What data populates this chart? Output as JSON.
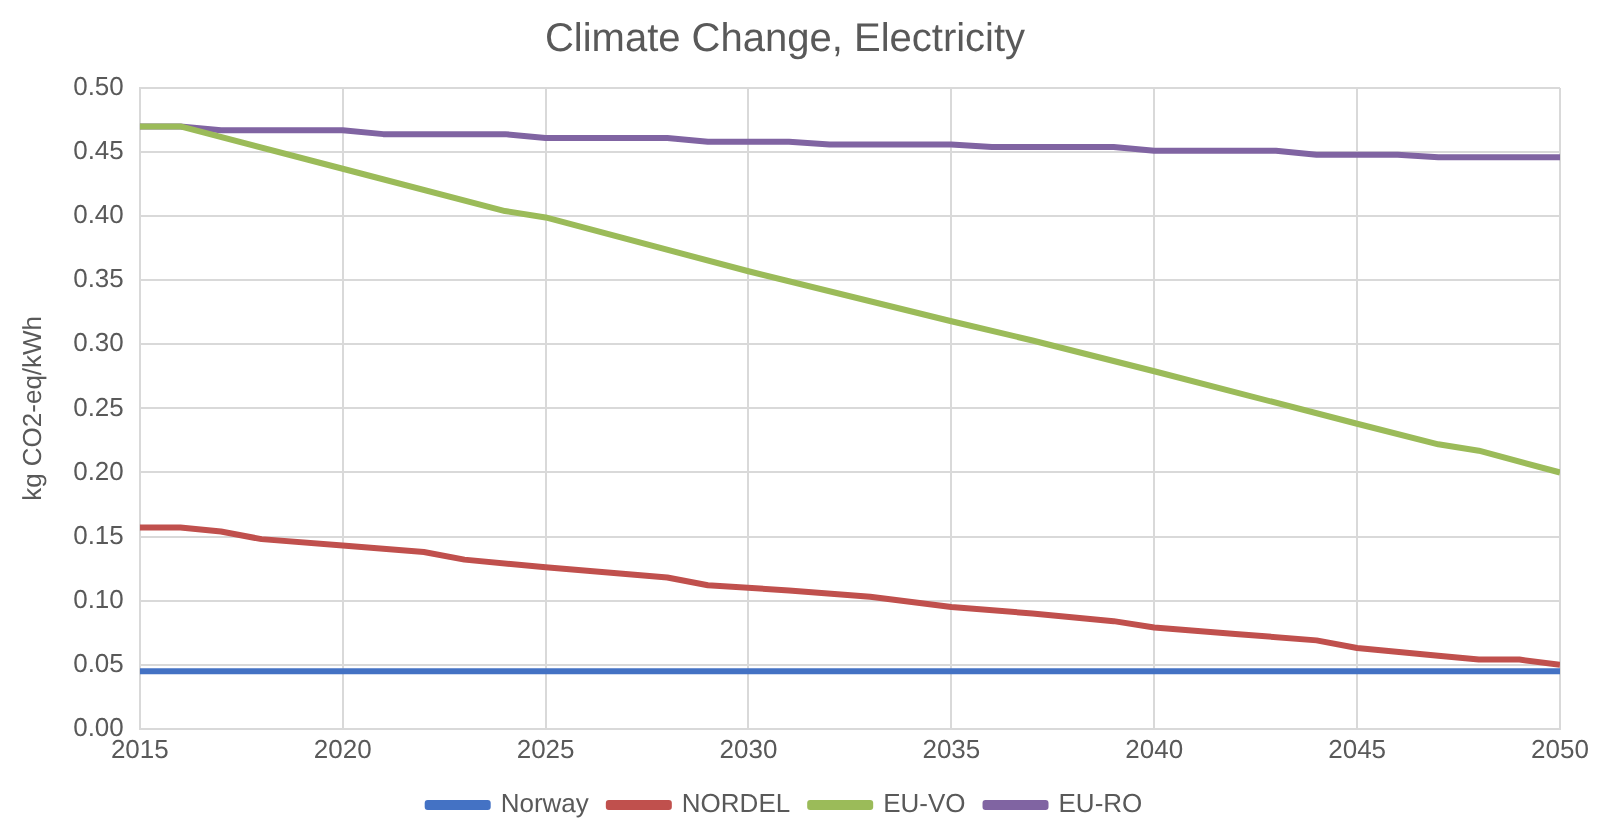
{
  "chart_data": {
    "type": "line",
    "title": "Climate Change, Electricity",
    "ylabel": "kg CO2-eq/kWh",
    "xlim": [
      2015,
      2050
    ],
    "xticks": [
      2015,
      2020,
      2025,
      2030,
      2035,
      2040,
      2045,
      2050
    ],
    "ylim": [
      0,
      0.5
    ],
    "yticks": [
      {
        "value": 0,
        "label": "0.00"
      },
      {
        "value": 0.05,
        "label": "0.05"
      },
      {
        "value": 0.1,
        "label": "0.10"
      },
      {
        "value": 0.15,
        "label": "0.15"
      },
      {
        "value": 0.2,
        "label": "0.20"
      },
      {
        "value": 0.25,
        "label": "0.25"
      },
      {
        "value": 0.3,
        "label": "0.30"
      },
      {
        "value": 0.35,
        "label": "0.35"
      },
      {
        "value": 0.4,
        "label": "0.40"
      },
      {
        "value": 0.45,
        "label": "0.45"
      },
      {
        "value": 0.5,
        "label": "0.50"
      }
    ],
    "grid": true,
    "legend": "bottom",
    "marker": "none",
    "series": [
      {
        "name": "Norway",
        "color": "#4472c4",
        "x": [
          2015,
          2050
        ],
        "values": [
          0.045,
          0.045
        ]
      },
      {
        "name": "NORDEL",
        "color": "#c0504d",
        "x": [
          2015,
          2016,
          2017,
          2018,
          2020,
          2022,
          2023,
          2025,
          2028,
          2029,
          2031,
          2033,
          2035,
          2037,
          2039,
          2040,
          2042,
          2044,
          2045,
          2047,
          2048,
          2049,
          2050
        ],
        "values": [
          0.157,
          0.157,
          0.154,
          0.148,
          0.143,
          0.138,
          0.132,
          0.126,
          0.118,
          0.112,
          0.108,
          0.103,
          0.095,
          0.09,
          0.084,
          0.079,
          0.074,
          0.069,
          0.063,
          0.057,
          0.054,
          0.054,
          0.05
        ]
      },
      {
        "name": "EU-VO",
        "color": "#9bbb59",
        "x": [
          2015,
          2016,
          2020,
          2024,
          2025,
          2030,
          2035,
          2037,
          2040,
          2045,
          2047,
          2048,
          2050
        ],
        "values": [
          0.47,
          0.47,
          0.437,
          0.404,
          0.399,
          0.357,
          0.318,
          0.303,
          0.279,
          0.238,
          0.222,
          0.217,
          0.2
        ]
      },
      {
        "name": "EU-RO",
        "color": "#8064a2",
        "x": [
          2015,
          2016,
          2017,
          2020,
          2021,
          2024,
          2025,
          2028,
          2029,
          2031,
          2032,
          2035,
          2036,
          2039,
          2040,
          2043,
          2044,
          2046,
          2047,
          2050
        ],
        "values": [
          0.47,
          0.47,
          0.467,
          0.467,
          0.464,
          0.464,
          0.461,
          0.461,
          0.458,
          0.458,
          0.456,
          0.456,
          0.454,
          0.454,
          0.451,
          0.451,
          0.448,
          0.448,
          0.446,
          0.446
        ]
      }
    ]
  }
}
